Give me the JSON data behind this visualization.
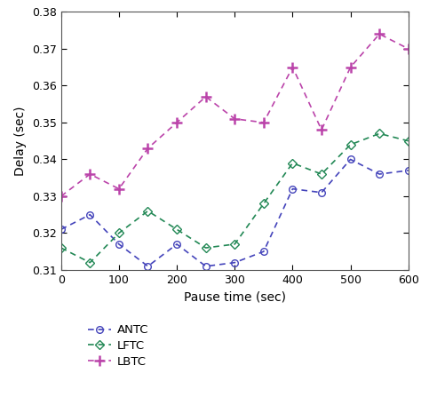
{
  "x": [
    0,
    50,
    100,
    150,
    200,
    250,
    300,
    350,
    400,
    450,
    500,
    550,
    600
  ],
  "ANTC": [
    0.321,
    0.325,
    0.317,
    0.311,
    0.317,
    0.311,
    0.312,
    0.315,
    0.332,
    0.331,
    0.34,
    0.336,
    0.337
  ],
  "LFTC": [
    0.316,
    0.312,
    0.32,
    0.326,
    0.321,
    0.316,
    0.317,
    0.328,
    0.339,
    0.336,
    0.344,
    0.347,
    0.345
  ],
  "LBTC": [
    0.33,
    0.336,
    0.332,
    0.343,
    0.35,
    0.357,
    0.351,
    0.35,
    0.365,
    0.348,
    0.365,
    0.374,
    0.37
  ],
  "ANTC_color": "#4444bb",
  "LFTC_color": "#228855",
  "LBTC_color": "#bb44aa",
  "xlabel": "Pause time (sec)",
  "ylabel": "Delay (sec)",
  "ylim": [
    0.31,
    0.38
  ],
  "xlim": [
    0,
    600
  ],
  "yticks": [
    0.31,
    0.32,
    0.33,
    0.34,
    0.35,
    0.36,
    0.37,
    0.38
  ],
  "xticks": [
    0,
    100,
    200,
    300,
    400,
    500,
    600
  ],
  "bg_color": "#ffffff"
}
